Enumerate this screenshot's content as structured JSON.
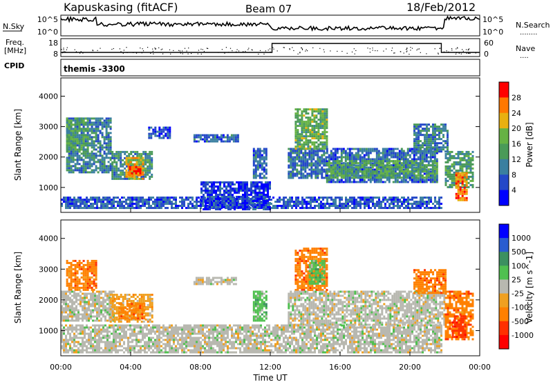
{
  "header": {
    "site": "Kapuskasing (fitACF)",
    "beam": "Beam 07",
    "date": "18/Feb/2012"
  },
  "noise_panel": {
    "left_label": "N.Sky",
    "right_label": "N.Search",
    "right_dots": "........",
    "ticks": [
      "10^5",
      "10^0"
    ]
  },
  "freq_panel": {
    "left_label_1": "Freq.",
    "left_label_2": "[MHz]",
    "left_ticks": [
      "18",
      "8"
    ],
    "right_ticks": [
      "60",
      "0"
    ],
    "right_label": "Nave",
    "right_dots": "....",
    "cpid_label": "CPID"
  },
  "cpid": {
    "text": "themis -3300"
  },
  "colors": {
    "power": [
      "#0000ff",
      "#2448c8",
      "#3a7fa0",
      "#4a9a58",
      "#66b244",
      "#e8b010",
      "#ff7800",
      "#ff0000"
    ],
    "velocity": [
      "#0000ff",
      "#2a5cd0",
      "#3c9060",
      "#50c050",
      "#b8b8b0",
      "#f0a020",
      "#ff8000",
      "#ff3000",
      "#ff0000"
    ]
  },
  "chart_data": [
    {
      "type": "heatmap",
      "name": "power",
      "ylabel": "Slant Range [km]",
      "yticks": [
        1000,
        2000,
        3000,
        4000
      ],
      "ylim": [
        180,
        4600
      ],
      "colorbar": {
        "label": "Power [dB]",
        "ticks": [
          4,
          8,
          12,
          16,
          20,
          24,
          28
        ],
        "tick_labels": [
          "4",
          "8",
          "12",
          "16",
          "20",
          "24",
          "28"
        ],
        "range": [
          0,
          32
        ]
      },
      "regions": [
        {
          "t0": 0.3,
          "t1": 2.8,
          "r0": 1500,
          "r1": 3300,
          "level": 0.3
        },
        {
          "t0": 0.3,
          "t1": 1.6,
          "r0": 2200,
          "r1": 3300,
          "level": 0.45
        },
        {
          "t0": 2.9,
          "t1": 5.2,
          "r0": 1300,
          "r1": 2200,
          "level": 0.35
        },
        {
          "t0": 3.7,
          "t1": 4.7,
          "r0": 1300,
          "r1": 2000,
          "level": 0.75
        },
        {
          "t0": 3.9,
          "t1": 4.5,
          "r0": 1400,
          "r1": 1700,
          "level": 0.92
        },
        {
          "t0": 5.0,
          "t1": 6.2,
          "r0": 2600,
          "r1": 3000,
          "level": 0.12
        },
        {
          "t0": 7.6,
          "t1": 10.2,
          "r0": 2500,
          "r1": 2750,
          "level": 0.22
        },
        {
          "t0": 11.0,
          "t1": 11.8,
          "r0": 1300,
          "r1": 2300,
          "level": 0.2
        },
        {
          "t0": 13.0,
          "t1": 15.2,
          "r0": 1300,
          "r1": 2300,
          "level": 0.25
        },
        {
          "t0": 13.4,
          "t1": 15.3,
          "r0": 2300,
          "r1": 3600,
          "level": 0.5
        },
        {
          "t0": 15.2,
          "t1": 21.5,
          "r0": 1200,
          "r1": 2300,
          "level": 0.22
        },
        {
          "t0": 15.2,
          "t1": 21.5,
          "r0": 1300,
          "r1": 1900,
          "level": 0.45
        },
        {
          "t0": 20.2,
          "t1": 22.2,
          "r0": 2200,
          "r1": 3100,
          "level": 0.3
        },
        {
          "t0": 22.0,
          "t1": 23.6,
          "r0": 1000,
          "r1": 2200,
          "level": 0.4
        },
        {
          "t0": 22.6,
          "t1": 23.3,
          "r0": 600,
          "r1": 1500,
          "level": 0.85
        },
        {
          "t0": 0.0,
          "t1": 21.8,
          "r0": 300,
          "r1": 700,
          "level": 0.18
        },
        {
          "t0": 8.0,
          "t1": 12.0,
          "r0": 300,
          "r1": 1200,
          "level": 0.1
        }
      ]
    },
    {
      "type": "heatmap",
      "name": "velocity",
      "ylabel": "Slant Range [km]",
      "xlabel": "Time UT",
      "xticks": [
        "00:00",
        "04:00",
        "08:00",
        "12:00",
        "16:00",
        "20:00",
        "00:00"
      ],
      "xlim_hours": [
        0,
        24
      ],
      "yticks": [
        1000,
        2000,
        3000,
        4000
      ],
      "ylim": [
        180,
        4600
      ],
      "colorbar": {
        "label": "Velocity [m s^-1]",
        "tick_labels": [
          "1000",
          "500",
          "100",
          "25",
          "-25",
          "-100",
          "-500",
          "-1000"
        ]
      },
      "regions": [
        {
          "t0": 0.3,
          "t1": 2.0,
          "r0": 2300,
          "r1": 3300,
          "cat": 6
        },
        {
          "t0": 0.0,
          "t1": 3.0,
          "r0": 1300,
          "r1": 2300,
          "cat": 4
        },
        {
          "t0": 2.8,
          "t1": 5.2,
          "r0": 1300,
          "r1": 2200,
          "cat": 5
        },
        {
          "t0": 3.3,
          "t1": 4.8,
          "r0": 1400,
          "r1": 1900,
          "cat": 6
        },
        {
          "t0": 7.6,
          "t1": 10.0,
          "r0": 2500,
          "r1": 2750,
          "cat": 4
        },
        {
          "t0": 11.0,
          "t1": 11.8,
          "r0": 1300,
          "r1": 2300,
          "cat": 3
        },
        {
          "t0": 13.4,
          "t1": 15.3,
          "r0": 2300,
          "r1": 3700,
          "cat": 6
        },
        {
          "t0": 14.2,
          "t1": 15.1,
          "r0": 2500,
          "r1": 3300,
          "cat": 3
        },
        {
          "t0": 13.0,
          "t1": 22.0,
          "r0": 1200,
          "r1": 2300,
          "cat": 4
        },
        {
          "t0": 20.2,
          "t1": 22.0,
          "r0": 2200,
          "r1": 3000,
          "cat": 6
        },
        {
          "t0": 22.0,
          "t1": 23.6,
          "r0": 700,
          "r1": 2300,
          "cat": 6
        },
        {
          "t0": 22.4,
          "t1": 23.2,
          "r0": 800,
          "r1": 1500,
          "cat": 7
        },
        {
          "t0": 0.0,
          "t1": 21.8,
          "r0": 300,
          "r1": 1200,
          "cat": 4
        }
      ]
    }
  ]
}
